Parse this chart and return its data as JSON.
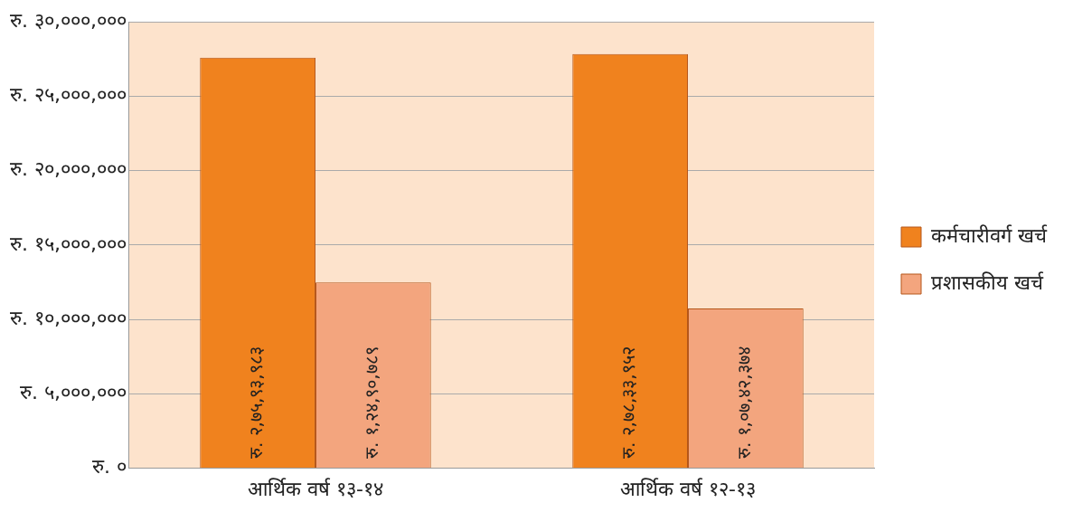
{
  "chart_data": {
    "type": "bar",
    "categories": [
      "आर्थिक वर्ष १३-१४",
      "आर्थिक वर्ष १२-१३"
    ],
    "series": [
      {
        "name": "कर्मचारीवर्ग खर्च",
        "color": "#f0821e",
        "values": [
          27593983,
          27833952
        ],
        "value_labels": [
          "रु. २,७५,९३,९८३",
          "रु. २,७८,३३,९५२"
        ]
      },
      {
        "name": "प्रशासकीय खर्च",
        "color": "#f3a57e",
        "values": [
          12490789,
          10742374
        ],
        "value_labels": [
          "रु. १,२४,९०,७८९",
          "रु. १,०७,४२,३७४"
        ]
      }
    ],
    "ylim": [
      0,
      30000000
    ],
    "yticks": [
      {
        "value": 0,
        "label": "रु. ०"
      },
      {
        "value": 5000000,
        "label": "रु. ५,०००,०००"
      },
      {
        "value": 10000000,
        "label": "रु. १०,०००,०००"
      },
      {
        "value": 15000000,
        "label": "रु. १५,०००,०००"
      },
      {
        "value": 20000000,
        "label": "रु. २०,०००,०००"
      },
      {
        "value": 25000000,
        "label": "रु. २५,०००,०००"
      },
      {
        "value": 30000000,
        "label": "रु. ३०,०००,०००"
      }
    ],
    "grid": "y",
    "legend": "right"
  }
}
